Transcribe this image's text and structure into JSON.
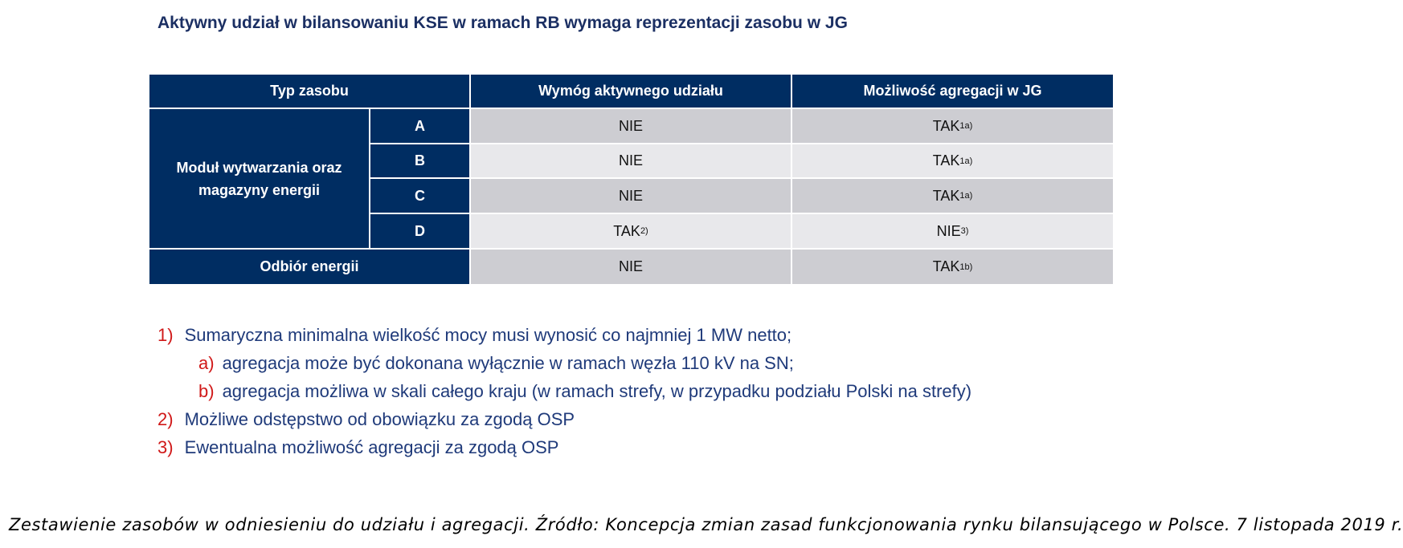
{
  "title": "Aktywny udział w bilansowaniu KSE w ramach RB wymaga reprezentacji zasobu w JG",
  "table": {
    "headers": [
      "Typ zasobu",
      "Wymóg aktywnego udziału",
      "Możliwość agregacji w JG"
    ],
    "group_label": "Moduł wytwarzania oraz magazyny energii",
    "rows": [
      {
        "type": "A",
        "requirement": "NIE",
        "req_sup": "",
        "aggregation": "TAK",
        "agg_sup": "1a)"
      },
      {
        "type": "B",
        "requirement": "NIE",
        "req_sup": "",
        "aggregation": "TAK",
        "agg_sup": "1a)"
      },
      {
        "type": "C",
        "requirement": "NIE",
        "req_sup": "",
        "aggregation": "TAK",
        "agg_sup": "1a)"
      },
      {
        "type": "D",
        "requirement": "TAK",
        "req_sup": "2)",
        "aggregation": "NIE",
        "agg_sup": "3)"
      }
    ],
    "last_row": {
      "type": "Odbiór energii",
      "requirement": "NIE",
      "aggregation": "TAK",
      "agg_sup": "1b)"
    }
  },
  "footnotes": [
    {
      "num": "1)",
      "text": "Sumaryczna minimalna wielkość mocy musi wynosić co najmniej 1 MW netto;"
    },
    {
      "num": "a)",
      "text": "agregacja może być dokonana wyłącznie w ramach węzła 110 kV na SN;"
    },
    {
      "num": "b)",
      "text": "agregacja możliwa w skali całego kraju (w ramach strefy, w przypadku podziału Polski na strefy)"
    },
    {
      "num": "2)",
      "text": "Możliwe odstępstwo od obowiązku za zgodą OSP"
    },
    {
      "num": "3)",
      "text": "Ewentualna możliwość agregacji za zgodą OSP"
    }
  ],
  "caption": "Zestawienie zasobów w odniesieniu do udziału i agregacji. Źródło: Koncepcja zmian zasad funkcjonowania rynku bilansującego w Polsce. 7 listopada 2019 r.",
  "colors": {
    "header_bg": "#002d62",
    "row_dark": "#cdcdd2",
    "row_light": "#e8e8eb",
    "footnote_num": "#d01818",
    "footnote_text": "#1f3a7a"
  }
}
